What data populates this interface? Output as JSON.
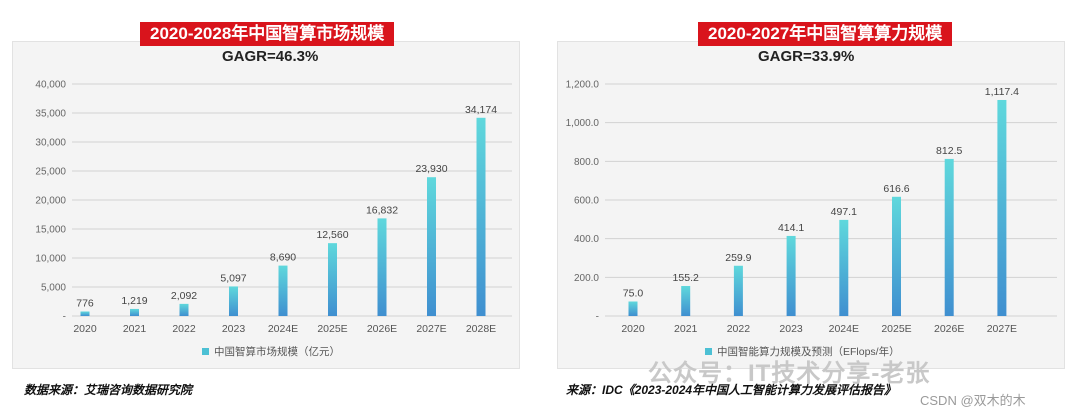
{
  "charts": [
    {
      "banner": "2020-2028年中国智算市场规模",
      "cagr": "GAGR=46.3%",
      "source": "数据来源：艾瑞咨询数据研究院"
    },
    {
      "banner": "2020-2027年中国智算算力规模",
      "cagr": "GAGR=33.9%",
      "source": "来源：IDC《2023-2024年中国人工智能计算力发展评估报告》"
    }
  ],
  "watermark": "公众号：IT技术分享-老张",
  "credit": "CSDN @双木的木",
  "colors": {
    "banner": "#d9141c",
    "bar_top": "#5fd8dc",
    "bar_bottom": "#3f8fd0"
  },
  "chart_data": [
    {
      "type": "bar",
      "title": "2020-2028年中国智算市场规模",
      "categories": [
        "2020",
        "2021",
        "2022",
        "2023",
        "2024E",
        "2025E",
        "2026E",
        "2027E",
        "2028E"
      ],
      "values": [
        776,
        1219,
        2092,
        5097,
        8690,
        12560,
        16832,
        23930,
        34174
      ],
      "value_labels": [
        "776",
        "1,219",
        "2,092",
        "5,097",
        "8,690",
        "12,560",
        "16,832",
        "23,930",
        "34,174"
      ],
      "yticks": [
        0,
        5000,
        10000,
        15000,
        20000,
        25000,
        30000,
        35000,
        40000
      ],
      "ytick_labels": [
        "-",
        "5,000",
        "10,000",
        "15,000",
        "20,000",
        "25,000",
        "30,000",
        "35,000",
        "40,000"
      ],
      "ylim": [
        0,
        40000
      ],
      "legend": "中国智算市场规模（亿元）",
      "xlabel": "",
      "ylabel": ""
    },
    {
      "type": "bar",
      "title": "2020-2027年中国智算算力规模",
      "categories": [
        "2020",
        "2021",
        "2022",
        "2023",
        "2024E",
        "2025E",
        "2026E",
        "2027E"
      ],
      "values": [
        75.0,
        155.2,
        259.9,
        414.1,
        497.1,
        616.6,
        812.5,
        1117.4
      ],
      "value_labels": [
        "75.0",
        "155.2",
        "259.9",
        "414.1",
        "497.1",
        "616.6",
        "812.5",
        "1,117.4"
      ],
      "yticks": [
        0,
        200,
        400,
        600,
        800,
        1000,
        1200
      ],
      "ytick_labels": [
        "-",
        "200.0",
        "400.0",
        "600.0",
        "800.0",
        "1,000.0",
        "1,200.0"
      ],
      "ylim": [
        0,
        1200
      ],
      "legend": "中国智能算力规模及预测（EFlops/年）",
      "xlabel": "",
      "ylabel": ""
    }
  ]
}
